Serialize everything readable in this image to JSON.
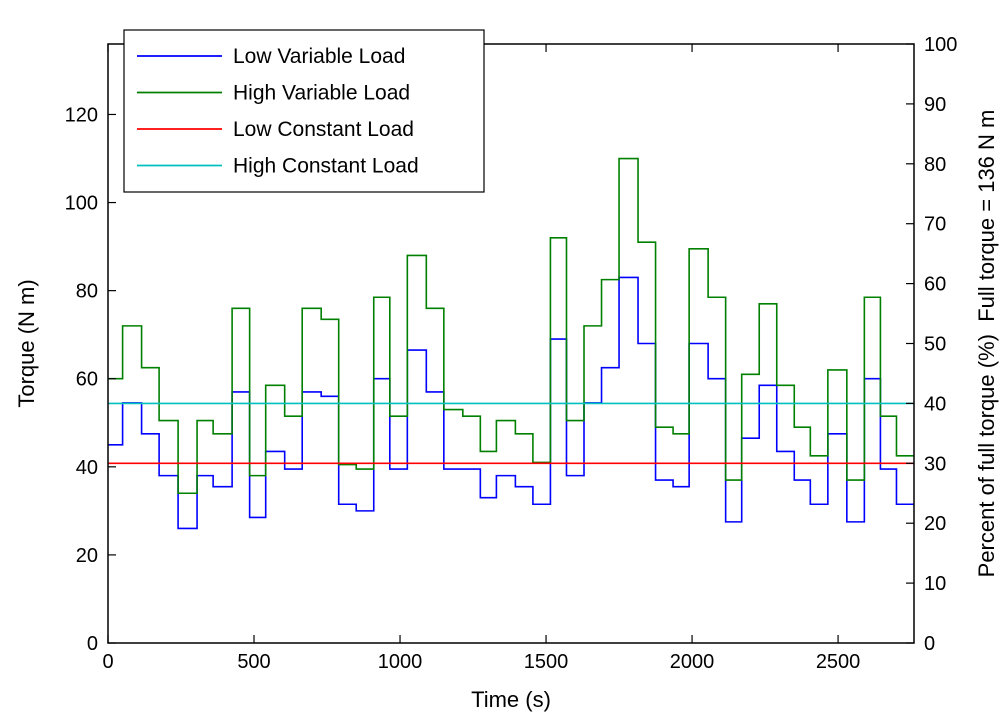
{
  "chart_data": {
    "type": "line",
    "step": true,
    "xlabel": "Time (s)",
    "ylabel": "Torque (N m)",
    "y2label": "Percent of full torque (%)  Full torque = 136 N m",
    "xlim": [
      0,
      2760
    ],
    "ylim": [
      0,
      136
    ],
    "y2lim": [
      0,
      100
    ],
    "xticks": [
      0,
      500,
      1000,
      1500,
      2000,
      2500
    ],
    "yticks": [
      0,
      20,
      40,
      60,
      80,
      100,
      120
    ],
    "y2ticks": [
      0,
      10,
      20,
      30,
      40,
      50,
      60,
      70,
      80,
      90,
      100
    ],
    "grid": false,
    "legend_position": "top-left",
    "series": [
      {
        "name": "Low Variable Load",
        "color": "#0000ff",
        "x": [
          0,
          50,
          115,
          175,
          240,
          305,
          360,
          425,
          485,
          540,
          605,
          665,
          730,
          790,
          850,
          910,
          965,
          1025,
          1090,
          1150,
          1215,
          1275,
          1330,
          1395,
          1455,
          1515,
          1570,
          1630,
          1690,
          1750,
          1815,
          1875,
          1935,
          1990,
          2055,
          2115,
          2170,
          2230,
          2290,
          2350,
          2405,
          2465,
          2530,
          2590,
          2645,
          2700,
          2760
        ],
        "y": [
          45,
          54.5,
          47.5,
          38,
          26,
          38,
          35.5,
          57,
          28.5,
          43.5,
          39.5,
          57,
          56,
          31.5,
          30,
          60,
          39.5,
          66.5,
          57,
          39.5,
          39.5,
          33,
          38,
          35.5,
          31.5,
          69,
          38,
          54.5,
          62.5,
          83,
          68,
          37,
          35.5,
          68,
          60,
          27.5,
          46.5,
          58.5,
          43.5,
          37,
          31.5,
          47.5,
          27.5,
          60,
          39.5,
          31.5,
          31.5
        ]
      },
      {
        "name": "High Variable Load",
        "color": "#008000",
        "x": [
          0,
          50,
          115,
          175,
          240,
          305,
          360,
          425,
          485,
          540,
          605,
          665,
          730,
          790,
          850,
          910,
          965,
          1025,
          1090,
          1150,
          1215,
          1275,
          1330,
          1395,
          1455,
          1515,
          1570,
          1630,
          1690,
          1750,
          1815,
          1875,
          1935,
          1990,
          2055,
          2115,
          2170,
          2230,
          2290,
          2350,
          2405,
          2465,
          2530,
          2590,
          2645,
          2700,
          2760
        ],
        "y": [
          60,
          72,
          62.5,
          50.5,
          34,
          50.5,
          47.5,
          76,
          38,
          58.5,
          51.5,
          76,
          73.5,
          40.5,
          39.5,
          78.5,
          51.5,
          88,
          76,
          53,
          51.5,
          43.5,
          50.5,
          47.5,
          41,
          92,
          50.5,
          72,
          82.5,
          110,
          91,
          49,
          47.5,
          89.5,
          78.5,
          37,
          61,
          77,
          58.5,
          49,
          42.5,
          62,
          37,
          78.5,
          51.5,
          42.5,
          42.5
        ]
      },
      {
        "name": "Low Constant Load",
        "color": "#ff0000",
        "x": [
          0,
          2760
        ],
        "y": [
          40.8,
          40.8
        ]
      },
      {
        "name": "High Constant Load",
        "color": "#00bfbf",
        "x": [
          0,
          2760
        ],
        "y": [
          54.4,
          54.4
        ]
      }
    ]
  }
}
